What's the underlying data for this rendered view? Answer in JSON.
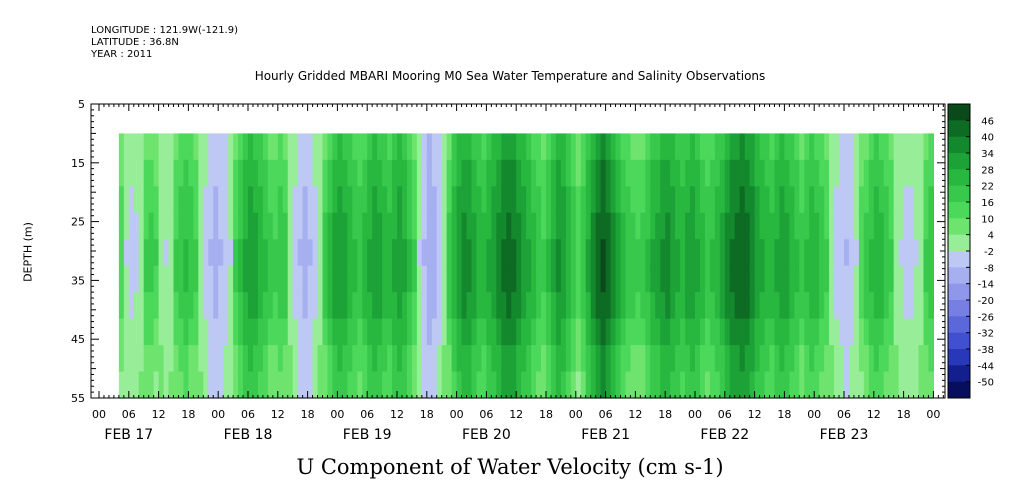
{
  "header": {
    "longitude": "LONGITUDE : 121.9W(-121.9)",
    "latitude": "LATITUDE : 36.8N",
    "year": "YEAR : 2011",
    "title": "Hourly Gridded MBARI Mooring M0 Sea Water Temperature and Salinity Observations"
  },
  "chart_data": {
    "type": "heatmap",
    "title": "Hourly Gridded MBARI Mooring M0 Sea Water Temperature and Salinity Observations",
    "xlabel": "U Component of Water Velocity (cm s-1)",
    "ylabel": "DEPTH (m)",
    "y_ticks": [
      "5",
      "15",
      "25",
      "35",
      "45",
      "55"
    ],
    "ylim": [
      5,
      55
    ],
    "y_inverted": true,
    "data_depth_range": [
      10,
      55
    ],
    "x_hour_ticks": [
      "00",
      "06",
      "12",
      "18"
    ],
    "x_day_labels": [
      "FEB 17",
      "FEB 18",
      "FEB 19",
      "FEB 20",
      "FEB 21",
      "FEB 22",
      "FEB 23"
    ],
    "data_time_start": "FEB 17 04:00",
    "data_time_end": "FEB 23 23:00",
    "colorbar": {
      "labels": [
        "46",
        "40",
        "34",
        "28",
        "22",
        "16",
        "10",
        "4",
        "-2",
        "-8",
        "-14",
        "-20",
        "-26",
        "-32",
        "-38",
        "-44",
        "-50"
      ],
      "colors": [
        "#0a4a1a",
        "#0d6b23",
        "#14882c",
        "#1ca236",
        "#28b840",
        "#38c84c",
        "#4cd85a",
        "#6ee46e",
        "#98ee98",
        "#bdc8f4",
        "#a6aff0",
        "#8e97ea",
        "#7580e2",
        "#5a68da",
        "#4050d0",
        "#2838b8",
        "#141f8e",
        "#070f5c"
      ]
    },
    "columns_by_day": [
      [
        0,
        -4,
        -6,
        -5,
        -3,
        2,
        3,
        1,
        -2,
        -4,
        -3,
        2,
        6,
        8,
        5,
        2,
        -3,
        -6,
        -10,
        -12
      ],
      [
        -10,
        -8,
        -4,
        2,
        8,
        14,
        18,
        16,
        12,
        8,
        4,
        2,
        6,
        4,
        -2,
        -6,
        -10,
        -12,
        -10,
        -6,
        -2,
        4,
        10,
        16
      ],
      [
        18,
        16,
        12,
        8,
        6,
        10,
        14,
        18,
        16,
        12,
        10,
        14,
        18,
        14,
        8,
        2,
        -4,
        -10,
        -14,
        -12,
        -8,
        -2,
        4,
        12
      ],
      [
        18,
        22,
        20,
        16,
        12,
        10,
        14,
        18,
        22,
        26,
        28,
        26,
        22,
        18,
        14,
        10,
        6,
        2,
        8,
        14,
        20,
        18,
        12,
        6
      ],
      [
        0,
        6,
        14,
        22,
        28,
        32,
        28,
        22,
        16,
        10,
        6,
        4,
        2,
        4,
        8,
        14,
        16,
        20,
        22,
        18,
        14,
        12,
        16,
        18
      ],
      [
        14,
        10,
        6,
        8,
        12,
        16,
        22,
        26,
        28,
        30,
        28,
        24,
        18,
        14,
        12,
        10,
        14,
        18,
        16,
        12,
        8,
        4,
        8,
        12
      ],
      [
        10,
        6,
        2,
        -2,
        -6,
        -8,
        -10,
        -8,
        -4,
        0,
        4,
        8,
        12,
        10,
        6,
        2,
        -2,
        -4,
        -6,
        -6,
        -4,
        -2,
        2,
        6
      ]
    ],
    "depth_trend": [
      0,
      3,
      6,
      8,
      10,
      9,
      7,
      3,
      -1,
      -3
    ]
  }
}
